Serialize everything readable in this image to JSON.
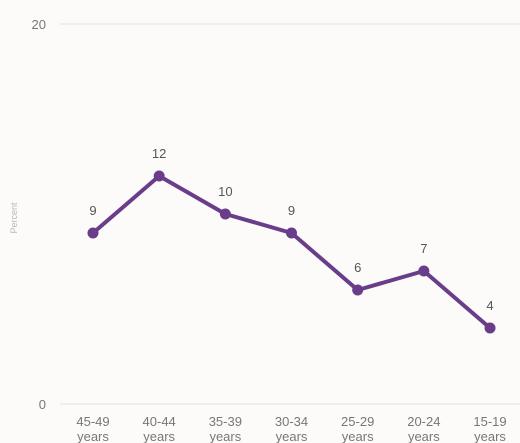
{
  "chart_data": {
    "type": "line",
    "categories": [
      "45-49 years",
      "40-44 years",
      "35-39 years",
      "30-34 years",
      "25-29 years",
      "20-24 years",
      "15-19 years"
    ],
    "category_labels": [
      [
        "45-49",
        "years"
      ],
      [
        "40-44",
        "years"
      ],
      [
        "35-39",
        "years"
      ],
      [
        "30-34",
        "years"
      ],
      [
        "25-29",
        "years"
      ],
      [
        "20-24",
        "years"
      ],
      [
        "15-19",
        "years"
      ]
    ],
    "series": [
      {
        "values": [
          9,
          12,
          10,
          9,
          6,
          7,
          4
        ]
      }
    ],
    "data_labels": [
      "9",
      "12",
      "10",
      "9",
      "6",
      "7",
      "4"
    ],
    "ylabel": "Percent",
    "ylim": [
      0,
      20
    ],
    "y_ticks": [
      "0",
      "20"
    ],
    "grid": true,
    "colors": {
      "line": "#6a3d8a",
      "gridline": "#e4e2e0",
      "tick_text": "#777777",
      "data_label": "#555555",
      "ylabel": "#b8b8b8",
      "background": "#fcfbfa"
    }
  }
}
